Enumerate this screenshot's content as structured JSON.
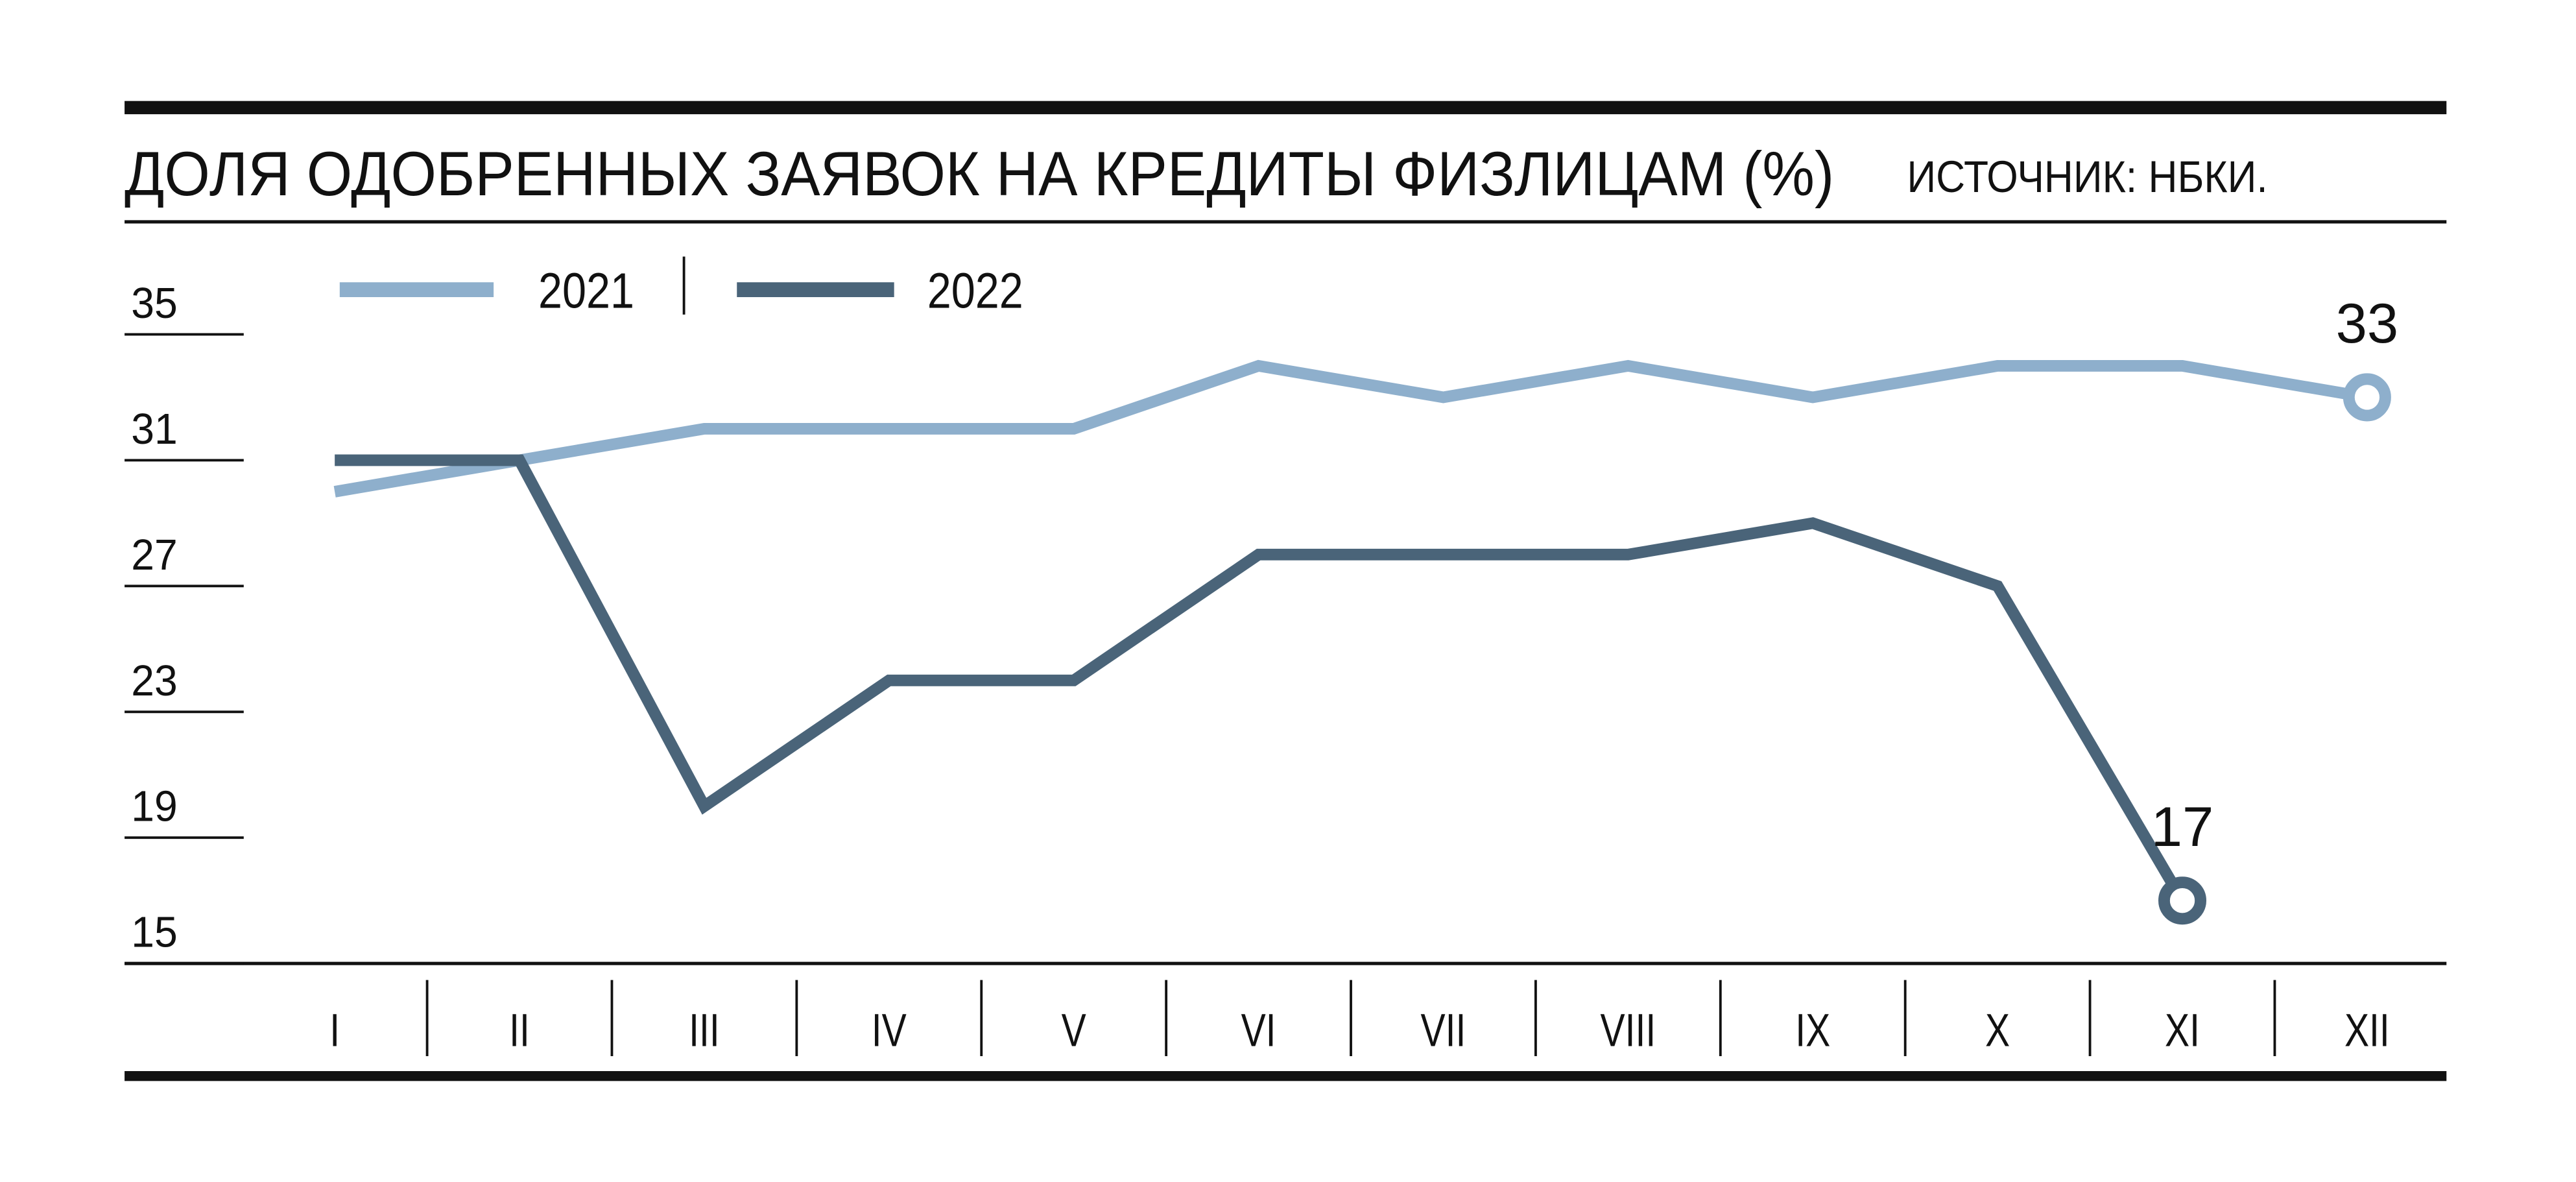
{
  "chart_data": {
    "type": "line",
    "title": "ДОЛЯ ОДОБРЕННЫХ ЗАЯВОК НА КРЕДИТЫ ФИЗЛИЦАМ (%)",
    "subtitle": "ИСТОЧНИК: НБКИ.",
    "categories": [
      "I",
      "II",
      "III",
      "IV",
      "V",
      "VI",
      "VII",
      "VIII",
      "IX",
      "X",
      "XI",
      "XII"
    ],
    "series": [
      {
        "name": "2021",
        "color": "#8eafcc",
        "values": [
          30,
          31,
          32,
          32,
          32,
          34,
          33,
          34,
          33,
          34,
          34,
          33
        ]
      },
      {
        "name": "2022",
        "color": "#4a6479",
        "values": [
          31,
          31,
          20,
          24,
          24,
          28,
          28,
          28,
          29,
          27,
          17,
          null
        ]
      }
    ],
    "ylim": [
      15,
      35
    ],
    "yticks": [
      15,
      19,
      23,
      27,
      31,
      35
    ]
  }
}
